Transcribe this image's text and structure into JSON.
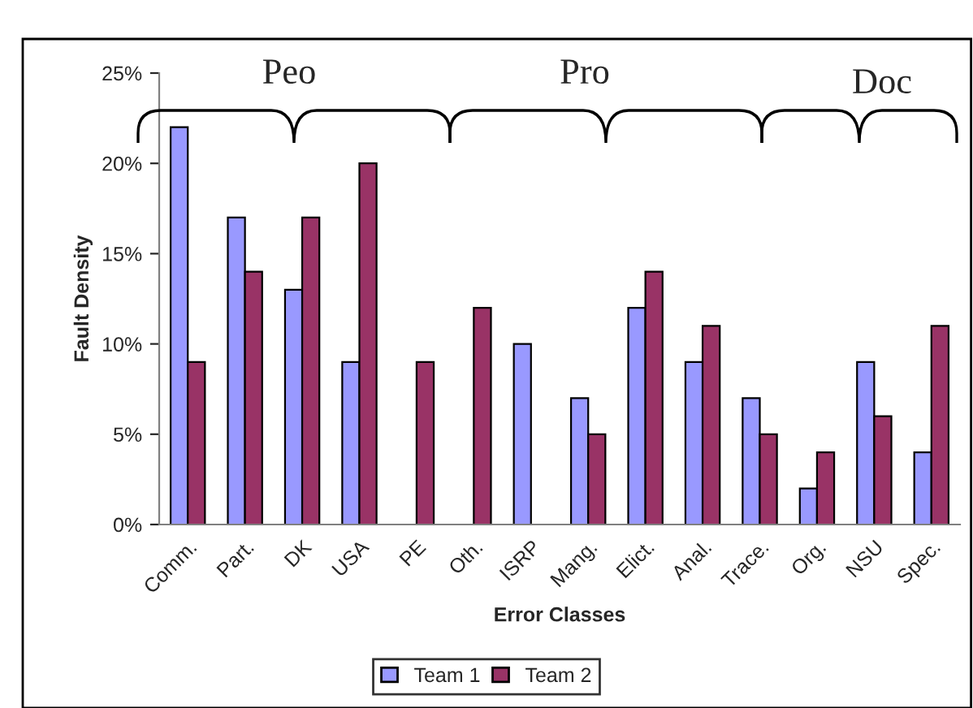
{
  "chart_data": {
    "type": "bar",
    "xlabel": "Error Classes",
    "ylabel": "Fault Density",
    "categories": [
      "Comm.",
      "Part.",
      "DK",
      "USA",
      "PE",
      "Oth.",
      "ISRP",
      "Mang.",
      "Elict.",
      "Anal.",
      "Trace.",
      "Org.",
      "NSU",
      "Spec."
    ],
    "series": [
      {
        "name": "Team 1",
        "color": "#9999ff",
        "values": [
          22,
          17,
          13,
          9,
          null,
          null,
          10,
          7,
          12,
          9,
          7,
          2,
          9,
          4
        ]
      },
      {
        "name": "Team 2",
        "color": "#993366",
        "values": [
          9,
          14,
          17,
          20,
          9,
          12,
          null,
          5,
          14,
          11,
          5,
          4,
          6,
          11
        ]
      }
    ],
    "ylim": [
      0,
      25
    ],
    "yticks": [
      {
        "value": 0,
        "label": "0%"
      },
      {
        "value": 5,
        "label": "5%"
      },
      {
        "value": 10,
        "label": "10%"
      },
      {
        "value": 15,
        "label": "15%"
      },
      {
        "value": 20,
        "label": "20%"
      },
      {
        "value": 25,
        "label": "25%"
      }
    ],
    "annotations": [
      "Peo",
      "Pro",
      "Doc"
    ],
    "grid": false,
    "legend": "bottom"
  }
}
